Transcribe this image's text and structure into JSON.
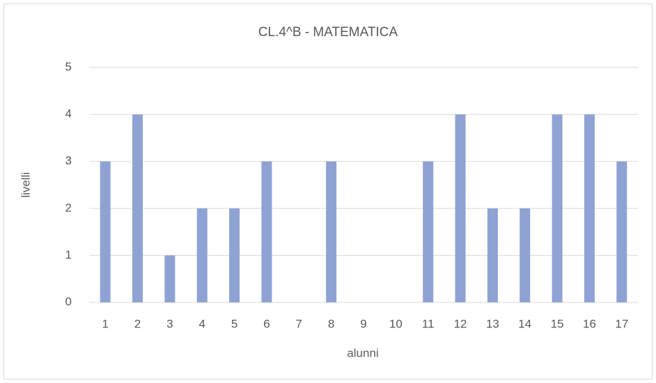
{
  "chart_data": {
    "type": "bar",
    "title": "CL.4^B - MATEMATICA",
    "x_label": "alunni",
    "y_label": "livelli",
    "categories": [
      "1",
      "2",
      "3",
      "4",
      "5",
      "6",
      "7",
      "8",
      "9",
      "10",
      "11",
      "12",
      "13",
      "14",
      "15",
      "16",
      "17"
    ],
    "values": [
      3,
      4,
      1,
      2,
      2,
      3,
      0,
      3,
      0,
      0,
      3,
      4,
      2,
      2,
      4,
      4,
      3
    ],
    "color": "#8fa2d4",
    "ylim": [
      0,
      5
    ],
    "yticks": [
      0,
      1,
      2,
      3,
      4,
      5
    ],
    "grid": true
  }
}
